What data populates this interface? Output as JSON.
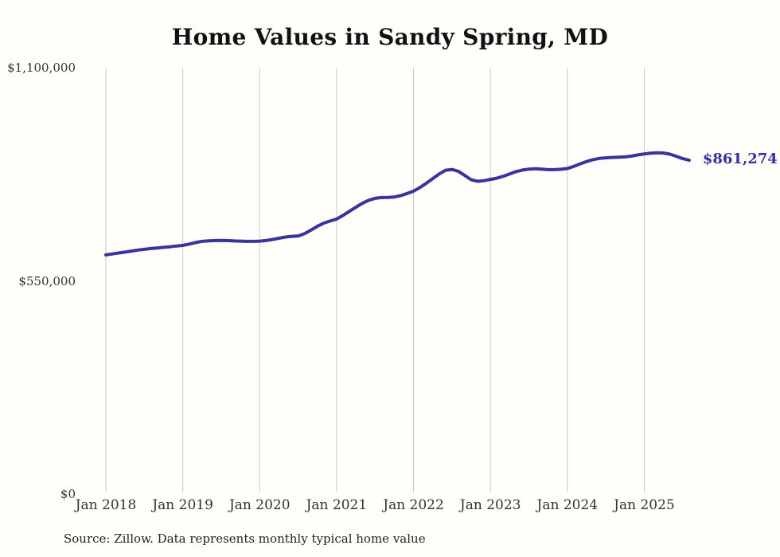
{
  "title": "Home Values in Sandy Spring, MD",
  "source_note": "Source: Zillow. Data represents monthly typical home value",
  "latest_value_label": "$861,274",
  "colors": {
    "background": "#fffefb",
    "line": "#39339c",
    "latest_label": "#33309b",
    "gridline": "#c9c9c9",
    "title_text": "#111111",
    "axis_text": "#333333",
    "source_text": "#222222"
  },
  "chart_data": {
    "type": "line",
    "title": "Home Values in Sandy Spring, MD",
    "xlabel": "",
    "ylabel": "",
    "ylim": [
      0,
      1100000
    ],
    "grid": "vertical-only",
    "legend": "none",
    "x_interval": "monthly",
    "x_start": "Jan 2018",
    "x_end": "Aug 2025",
    "x_ticks": [
      "Jan 2018",
      "Jan 2019",
      "Jan 2020",
      "Jan 2021",
      "Jan 2022",
      "Jan 2023",
      "Jan 2024",
      "Jan 2025"
    ],
    "y_ticks": [
      {
        "label": "$1,100,000",
        "value": 1100000
      },
      {
        "label": "$550,000",
        "value": 550000
      },
      {
        "label": "$0",
        "value": 0
      }
    ],
    "latest_value": 861274,
    "series": [
      {
        "name": "Typical home value",
        "values": [
          617000,
          619500,
          622000,
          624500,
          627000,
          629500,
          631500,
          633500,
          635000,
          636500,
          638000,
          640000,
          641500,
          645000,
          649000,
          652000,
          653500,
          654000,
          654500,
          654000,
          653000,
          652500,
          652000,
          652000,
          652500,
          654000,
          657000,
          660000,
          663000,
          665000,
          666000,
          672000,
          681000,
          691000,
          699000,
          704500,
          709500,
          719000,
          729500,
          740000,
          750000,
          758000,
          763000,
          765000,
          765500,
          766500,
          770000,
          775500,
          781500,
          791000,
          802000,
          814000,
          826000,
          835500,
          837500,
          833000,
          822000,
          811000,
          807000,
          808500,
          812000,
          815000,
          820000,
          826000,
          832000,
          836000,
          838500,
          839500,
          838500,
          837000,
          837000,
          838000,
          840000,
          845500,
          852000,
          858000,
          863000,
          866000,
          867500,
          868500,
          869000,
          870000,
          872000,
          875000,
          877500,
          879500,
          880500,
          880000,
          877000,
          871500,
          865500,
          861274
        ]
      }
    ]
  }
}
